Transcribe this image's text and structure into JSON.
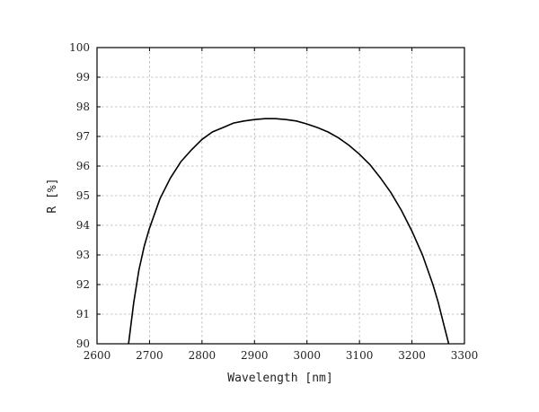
{
  "chart_data": {
    "type": "line",
    "title": "",
    "xlabel": "Wavelength [nm]",
    "ylabel": "R [%]",
    "xlim": [
      2600,
      3300
    ],
    "ylim": [
      90,
      100
    ],
    "xticks": [
      2600,
      2700,
      2800,
      2900,
      3000,
      3100,
      3200,
      3300
    ],
    "yticks": [
      90,
      91,
      92,
      93,
      94,
      95,
      96,
      97,
      98,
      99,
      100
    ],
    "grid": true,
    "legend": "none",
    "series": [
      {
        "color": "#000000",
        "x": [
          2660,
          2670,
          2680,
          2690,
          2700,
          2720,
          2740,
          2760,
          2780,
          2800,
          2820,
          2840,
          2860,
          2880,
          2900,
          2920,
          2940,
          2960,
          2980,
          3000,
          3020,
          3040,
          3060,
          3080,
          3100,
          3120,
          3140,
          3160,
          3180,
          3200,
          3220,
          3240,
          3250,
          3260,
          3270
        ],
        "y": [
          90.0,
          91.4,
          92.5,
          93.3,
          93.9,
          94.9,
          95.6,
          96.15,
          96.55,
          96.9,
          97.15,
          97.3,
          97.45,
          97.52,
          97.57,
          97.6,
          97.6,
          97.57,
          97.52,
          97.42,
          97.3,
          97.15,
          96.95,
          96.7,
          96.4,
          96.05,
          95.6,
          95.1,
          94.5,
          93.8,
          93.0,
          92.0,
          91.4,
          90.7,
          90.0
        ]
      }
    ]
  }
}
